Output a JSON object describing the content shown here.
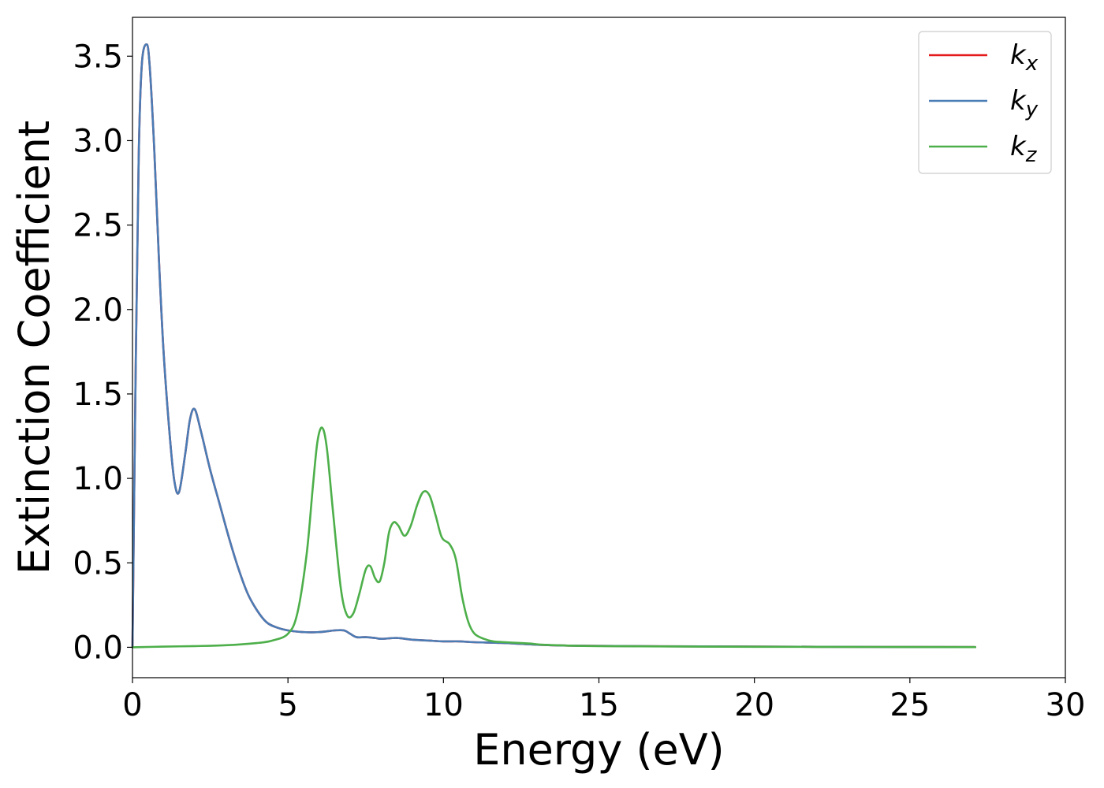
{
  "chart_data": {
    "type": "line",
    "title": "",
    "xlabel": "Energy (eV)",
    "ylabel": "Extinction Coefficient",
    "xlim": [
      0,
      30
    ],
    "ylim": [
      -0.18,
      3.73
    ],
    "xticks": [
      0,
      5,
      10,
      15,
      20,
      25,
      30
    ],
    "xtick_labels": [
      "0",
      "5",
      "10",
      "15",
      "20",
      "25",
      "30"
    ],
    "yticks": [
      0.0,
      0.5,
      1.0,
      1.5,
      2.0,
      2.5,
      3.0,
      3.5
    ],
    "ytick_labels": [
      "0.0",
      "0.5",
      "1.0",
      "1.5",
      "2.0",
      "2.5",
      "3.0",
      "3.5"
    ],
    "grid": false,
    "legend_position": "top-right",
    "series": [
      {
        "name": "k_x",
        "label_main": "k",
        "label_sub": "x",
        "color": "#e41a1c",
        "x": [
          0,
          0.1,
          0.2,
          0.3,
          0.45,
          0.55,
          0.7,
          0.85,
          1.0,
          1.2,
          1.35,
          1.5,
          1.7,
          1.85,
          2.0,
          2.2,
          2.5,
          2.8,
          3.1,
          3.4,
          3.7,
          4.0,
          4.3,
          4.6,
          5.0,
          5.5,
          6.0,
          6.5,
          6.8,
          7.0,
          7.2,
          7.5,
          7.8,
          8.0,
          8.5,
          9.0,
          9.5,
          10.0,
          10.5,
          11.0,
          12.0,
          13.0,
          14.0,
          15.0,
          17.0,
          20.0,
          24.0,
          27.1
        ],
        "values": [
          0.0,
          1.6,
          2.9,
          3.45,
          3.57,
          3.45,
          2.95,
          2.3,
          1.75,
          1.25,
          0.98,
          0.92,
          1.15,
          1.35,
          1.41,
          1.28,
          1.05,
          0.85,
          0.65,
          0.47,
          0.32,
          0.22,
          0.15,
          0.12,
          0.1,
          0.09,
          0.09,
          0.1,
          0.1,
          0.08,
          0.06,
          0.06,
          0.055,
          0.05,
          0.055,
          0.045,
          0.04,
          0.035,
          0.035,
          0.03,
          0.025,
          0.015,
          0.01,
          0.008,
          0.006,
          0.004,
          0.002,
          0.001
        ]
      },
      {
        "name": "k_y",
        "label_main": "k",
        "label_sub": "y",
        "color": "#4a7cb5",
        "x": [
          0,
          0.1,
          0.2,
          0.3,
          0.45,
          0.55,
          0.7,
          0.85,
          1.0,
          1.2,
          1.35,
          1.5,
          1.7,
          1.85,
          2.0,
          2.2,
          2.5,
          2.8,
          3.1,
          3.4,
          3.7,
          4.0,
          4.3,
          4.6,
          5.0,
          5.5,
          6.0,
          6.5,
          6.8,
          7.0,
          7.2,
          7.5,
          7.8,
          8.0,
          8.5,
          9.0,
          9.5,
          10.0,
          10.5,
          11.0,
          12.0,
          13.0,
          14.0,
          15.0,
          17.0,
          20.0,
          24.0,
          27.1
        ],
        "values": [
          0.0,
          1.6,
          2.9,
          3.45,
          3.57,
          3.45,
          2.95,
          2.3,
          1.75,
          1.25,
          0.98,
          0.92,
          1.15,
          1.35,
          1.41,
          1.28,
          1.05,
          0.85,
          0.65,
          0.47,
          0.32,
          0.22,
          0.15,
          0.12,
          0.1,
          0.09,
          0.09,
          0.1,
          0.1,
          0.08,
          0.06,
          0.06,
          0.055,
          0.05,
          0.055,
          0.045,
          0.04,
          0.035,
          0.035,
          0.03,
          0.025,
          0.015,
          0.01,
          0.008,
          0.006,
          0.004,
          0.002,
          0.001
        ]
      },
      {
        "name": "k_z",
        "label_main": "k",
        "label_sub": "z",
        "color": "#4daf4a",
        "x": [
          0,
          1.0,
          2.0,
          3.0,
          4.0,
          4.5,
          5.0,
          5.3,
          5.6,
          5.8,
          5.95,
          6.1,
          6.25,
          6.45,
          6.7,
          6.9,
          7.1,
          7.3,
          7.5,
          7.65,
          7.8,
          7.95,
          8.1,
          8.25,
          8.4,
          8.55,
          8.75,
          8.95,
          9.15,
          9.35,
          9.55,
          9.75,
          9.95,
          10.2,
          10.4,
          10.6,
          10.8,
          11.0,
          11.3,
          11.6,
          12.0,
          12.5,
          12.8,
          13.2,
          14.0,
          15.0,
          17.0,
          20.0,
          24.0,
          27.1
        ],
        "values": [
          0.0,
          0.004,
          0.007,
          0.012,
          0.025,
          0.04,
          0.08,
          0.2,
          0.55,
          0.95,
          1.22,
          1.3,
          1.18,
          0.8,
          0.35,
          0.19,
          0.2,
          0.32,
          0.46,
          0.48,
          0.41,
          0.39,
          0.5,
          0.68,
          0.74,
          0.72,
          0.66,
          0.72,
          0.84,
          0.92,
          0.9,
          0.78,
          0.65,
          0.61,
          0.52,
          0.3,
          0.15,
          0.08,
          0.05,
          0.035,
          0.03,
          0.025,
          0.022,
          0.015,
          0.01,
          0.007,
          0.005,
          0.003,
          0.002,
          0.001
        ]
      }
    ]
  }
}
